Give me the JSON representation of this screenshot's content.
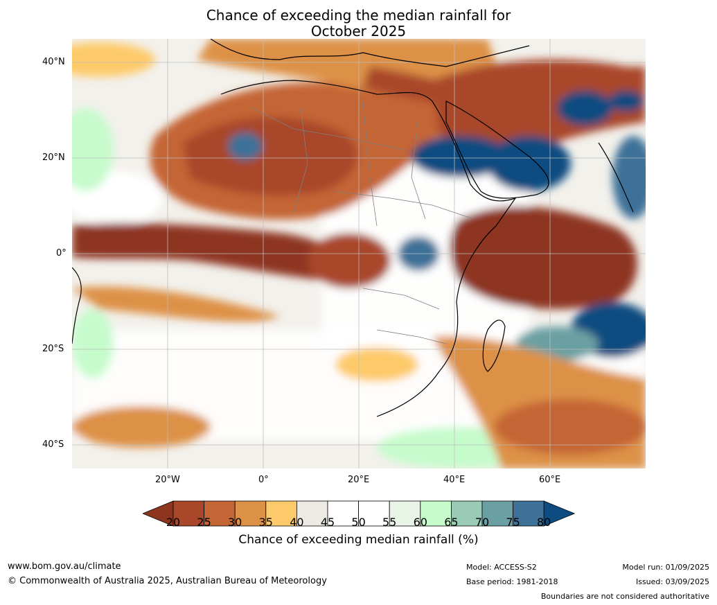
{
  "title": {
    "line1": "Chance of exceeding the median rainfall for",
    "line2": "October 2025"
  },
  "map": {
    "lat_ticks": [
      "40°N",
      "20°N",
      "0°",
      "20°S",
      "40°S"
    ],
    "lon_ticks": [
      "20°W",
      "0°",
      "20°E",
      "40°E",
      "60°E"
    ]
  },
  "colorbar": {
    "labels": [
      "20",
      "25",
      "30",
      "35",
      "40",
      "45",
      "50",
      "55",
      "60",
      "65",
      "70",
      "75",
      "80"
    ],
    "colors": [
      "#8e3520",
      "#a9472a",
      "#c46535",
      "#dd9147",
      "#fdca6b",
      "#eceae3",
      "#ffffff",
      "#ffffff",
      "#e8f5e6",
      "#c6fbcc",
      "#99cbb6",
      "#6aa0a3",
      "#3d7198",
      "#0d4b80"
    ],
    "title": "Chance of exceeding median rainfall (%)"
  },
  "footer": {
    "website": "www.bom.gov.au/climate",
    "copyright": "© Commonwealth of Australia 2025, Australian Bureau of Meteorology",
    "model": "Model: ACCESS-S2",
    "base_period": "Base period: 1981-2018",
    "model_run": "Model run: 01/09/2025",
    "issued": "Issued: 03/09/2025",
    "disclaimer": "Boundaries are not considered authoritative"
  }
}
